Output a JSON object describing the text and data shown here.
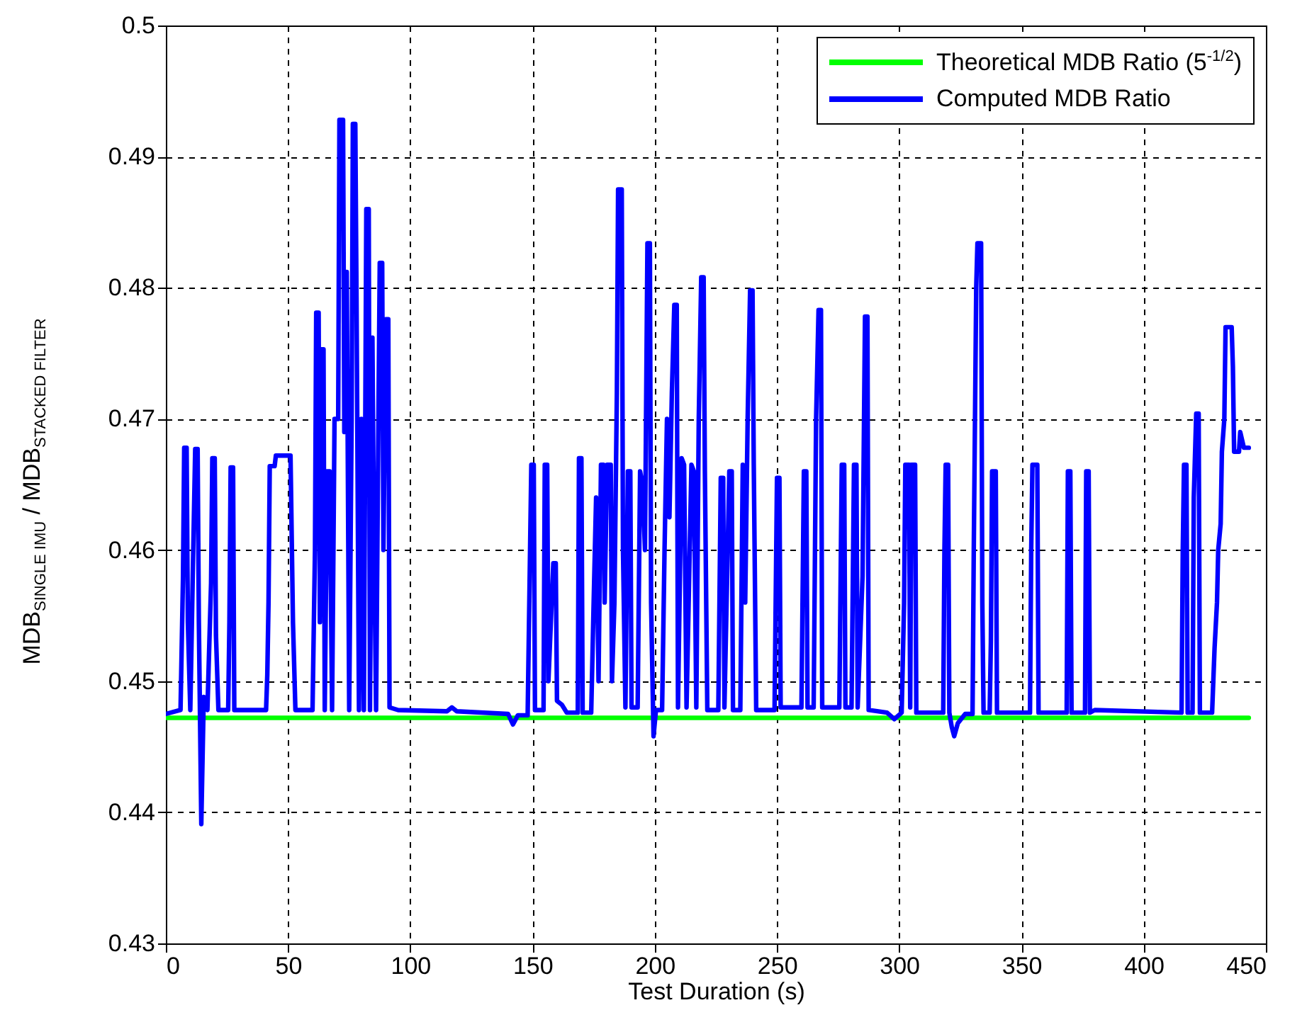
{
  "chart_data": {
    "type": "line",
    "xlabel": "Test Duration (s)",
    "ylabel": "MDB$_{SINGLE IMU}$ / MDB$_{STACKED FILTER}$",
    "xlim": [
      0,
      450
    ],
    "xticks": [
      0,
      50,
      100,
      150,
      200,
      250,
      300,
      350,
      400,
      450
    ],
    "ylim": [
      0.43,
      0.5
    ],
    "yticks": [
      0.43,
      0.44,
      0.45,
      0.46,
      0.47,
      0.48,
      0.49,
      0.5
    ],
    "grid": true,
    "legend": "top right",
    "line_style": "solid",
    "marker": "none",
    "series": [
      {
        "name": "Theoretical MDB Ratio (5$^{-1/2}$)",
        "color": "#00ff00",
        "x": [
          0,
          443
        ],
        "values": [
          0.4472,
          0.4472
        ]
      },
      {
        "name": "Computed MDB Ratio",
        "color": "#0000ff",
        "x": [
          0,
          6,
          7,
          7.5,
          8.5,
          9,
          10,
          11,
          12,
          13,
          13.5,
          14.5,
          15.5,
          17,
          18.5,
          19,
          20,
          20.5,
          21.5,
          25.5,
          26,
          26.5,
          27.5,
          28,
          41,
          41.5,
          42,
          42.5,
          44.5,
          45,
          51,
          52,
          53,
          60,
          61,
          61.5,
          62.5,
          63,
          63.5,
          64.5,
          65,
          66,
          67,
          68,
          69,
          70.5,
          71,
          72.5,
          73,
          74,
          75,
          76,
          76.5,
          77.5,
          78,
          79,
          80,
          81,
          82,
          83,
          83.5,
          84.5,
          85,
          86,
          87,
          87.5,
          88.5,
          89,
          90,
          91,
          91.5,
          95,
          115,
          117,
          119,
          140,
          142,
          144,
          148,
          149.5,
          150.5,
          151,
          154.5,
          155,
          156,
          156.5,
          158.5,
          159.5,
          160,
          162,
          164,
          168.5,
          169,
          170,
          170.5,
          174,
          175,
          176,
          177,
          178,
          179,
          179.5,
          180.5,
          182,
          182.5,
          183.5,
          184.5,
          185,
          186.5,
          187,
          188,
          189,
          190,
          190.5,
          193,
          194,
          195,
          196,
          197,
          198,
          198.5,
          199.5,
          200.5,
          203,
          204,
          205,
          206,
          207,
          208,
          209,
          209.5,
          211,
          212,
          213,
          215,
          216,
          217,
          218,
          219,
          220,
          220.5,
          221.5,
          226,
          227,
          228,
          228.5,
          230.5,
          231.5,
          232,
          235,
          236,
          237,
          238,
          239,
          240,
          240.5,
          241.5,
          249,
          250,
          251,
          251.5,
          260,
          261,
          262,
          262.5,
          265,
          266,
          267,
          268,
          268.5,
          275.5,
          276.5,
          277.5,
          278,
          280.5,
          281.5,
          282.5,
          283,
          285,
          286,
          287,
          287.5,
          295,
          298,
          301,
          302,
          302.5,
          304,
          304.5,
          305,
          306.5,
          307,
          318,
          318.5,
          319,
          320,
          320.5,
          321.5,
          322.5,
          324,
          327,
          330,
          330.5,
          331.5,
          332,
          333.5,
          334,
          334.5,
          337,
          337.5,
          338,
          339.5,
          340,
          353.5,
          354,
          354.5,
          356.5,
          357,
          368.5,
          369,
          370,
          370.5,
          376,
          376.5,
          377.5,
          378,
          380,
          415.5,
          416,
          416.5,
          417.5,
          418,
          420,
          420.5,
          421.5,
          422.5,
          423,
          428,
          429,
          430,
          430.5,
          431.5,
          432,
          433,
          433.5,
          436,
          436.5,
          437,
          439,
          439.5,
          441,
          443
        ],
        "values": [
          0.4475,
          0.4478,
          0.4578,
          0.4678,
          0.4678,
          0.4545,
          0.4478,
          0.458,
          0.4677,
          0.4677,
          0.4545,
          0.4391,
          0.4488,
          0.4478,
          0.4575,
          0.467,
          0.467,
          0.4535,
          0.4478,
          0.4478,
          0.4545,
          0.4663,
          0.4663,
          0.4478,
          0.4478,
          0.4505,
          0.456,
          0.4664,
          0.4664,
          0.4672,
          0.4672,
          0.4545,
          0.4478,
          0.4478,
          0.46,
          0.4781,
          0.4781,
          0.4545,
          0.4753,
          0.4753,
          0.4478,
          0.466,
          0.466,
          0.4478,
          0.47,
          0.47,
          0.4928,
          0.4928,
          0.469,
          0.4812,
          0.4478,
          0.47,
          0.4925,
          0.4925,
          0.4793,
          0.4478,
          0.47,
          0.4478,
          0.486,
          0.486,
          0.4478,
          0.4762,
          0.464,
          0.4478,
          0.471,
          0.4819,
          0.4819,
          0.46,
          0.4776,
          0.4776,
          0.448,
          0.4478,
          0.4477,
          0.448,
          0.4477,
          0.4475,
          0.4467,
          0.4474,
          0.4474,
          0.4665,
          0.4665,
          0.4478,
          0.4478,
          0.4665,
          0.4665,
          0.45,
          0.459,
          0.459,
          0.4485,
          0.4482,
          0.4476,
          0.4476,
          0.467,
          0.467,
          0.4476,
          0.4476,
          0.456,
          0.464,
          0.45,
          0.4665,
          0.4665,
          0.456,
          0.4665,
          0.4665,
          0.45,
          0.456,
          0.472,
          0.4875,
          0.4875,
          0.46,
          0.448,
          0.466,
          0.466,
          0.448,
          0.448,
          0.466,
          0.465,
          0.46,
          0.4834,
          0.4834,
          0.456,
          0.4458,
          0.4478,
          0.4478,
          0.46,
          0.47,
          0.4625,
          0.472,
          0.4787,
          0.4787,
          0.448,
          0.467,
          0.4665,
          0.448,
          0.4665,
          0.466,
          0.448,
          0.47,
          0.4808,
          0.4808,
          0.466,
          0.4478,
          0.4478,
          0.4655,
          0.4655,
          0.448,
          0.466,
          0.466,
          0.4478,
          0.4478,
          0.4665,
          0.456,
          0.47,
          0.4798,
          0.4798,
          0.4665,
          0.4478,
          0.4478,
          0.4655,
          0.4655,
          0.448,
          0.448,
          0.466,
          0.466,
          0.448,
          0.448,
          0.47,
          0.4783,
          0.4783,
          0.448,
          0.448,
          0.4665,
          0.4665,
          0.448,
          0.448,
          0.4665,
          0.4665,
          0.448,
          0.458,
          0.4778,
          0.4778,
          0.4478,
          0.4476,
          0.4471,
          0.4476,
          0.456,
          0.4665,
          0.4665,
          0.448,
          0.4665,
          0.4665,
          0.4476,
          0.4476,
          0.46,
          0.4665,
          0.4665,
          0.4476,
          0.4465,
          0.4458,
          0.4468,
          0.4475,
          0.4475,
          0.46,
          0.48,
          0.4834,
          0.4834,
          0.456,
          0.4476,
          0.4476,
          0.453,
          0.466,
          0.466,
          0.4476,
          0.4476,
          0.46,
          0.4665,
          0.4665,
          0.4476,
          0.4476,
          0.466,
          0.466,
          0.4476,
          0.4476,
          0.466,
          0.466,
          0.4476,
          0.4478,
          0.4476,
          0.46,
          0.4665,
          0.4665,
          0.4476,
          0.4476,
          0.464,
          0.4704,
          0.4704,
          0.4476,
          0.4476,
          0.4525,
          0.456,
          0.46,
          0.462,
          0.4675,
          0.47,
          0.477,
          0.477,
          0.474,
          0.4675,
          0.4675,
          0.469,
          0.4678,
          0.4678
        ]
      }
    ]
  }
}
